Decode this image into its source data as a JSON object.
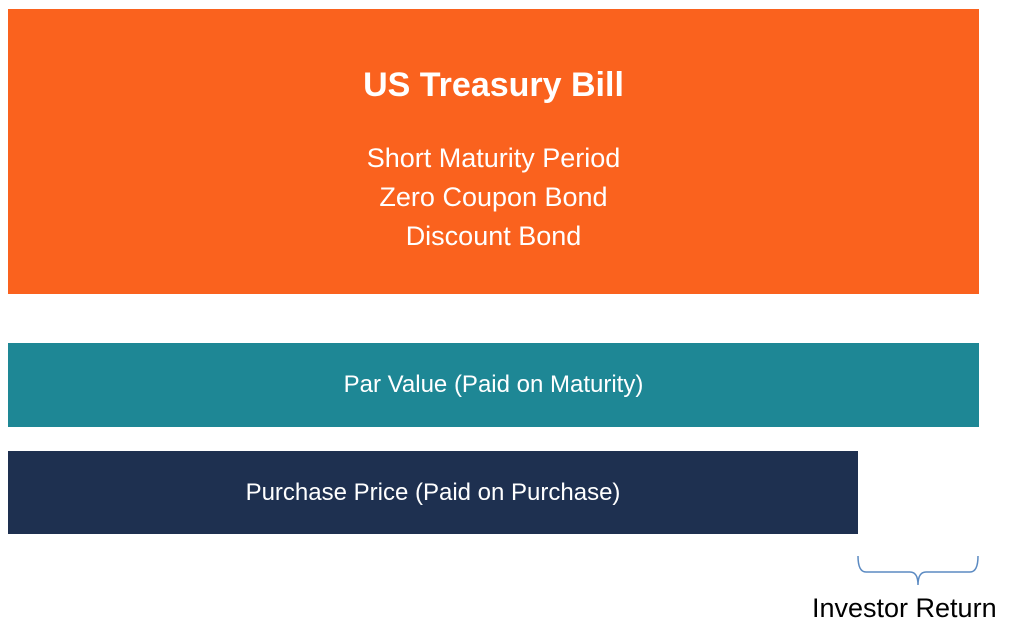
{
  "header": {
    "title": "US Treasury Bill",
    "features": [
      "Short Maturity Period",
      "Zero Coupon Bond",
      "Discount Bond"
    ]
  },
  "bars": {
    "par_value_label": "Par Value (Paid on Maturity)",
    "purchase_price_label": "Purchase Price (Paid on Purchase)"
  },
  "annotation": {
    "label": "Investor Return"
  },
  "colors": {
    "header": "#FA621E",
    "par_value": "#1E8795",
    "purchase_price": "#1E3050",
    "bracket": "#5B8AC2",
    "annotation_text": "#000000"
  }
}
